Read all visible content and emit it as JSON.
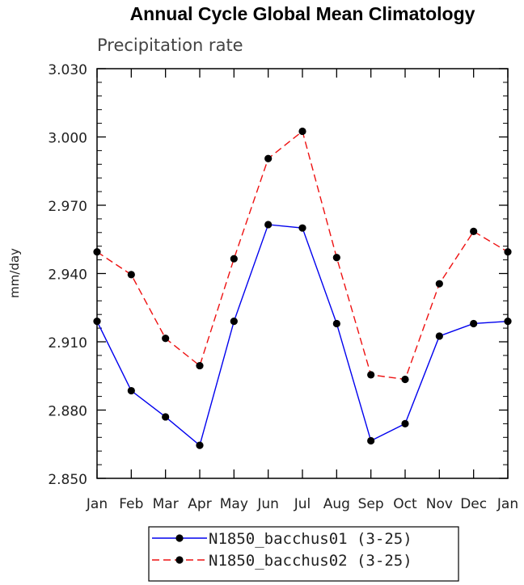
{
  "chart_data": {
    "type": "line",
    "title": "Annual Cycle Global Mean Climatology",
    "subtitle": "Precipitation rate",
    "ylabel": "mm/day",
    "xlabel": "",
    "categories": [
      "Jan",
      "Feb",
      "Mar",
      "Apr",
      "May",
      "Jun",
      "Jul",
      "Aug",
      "Sep",
      "Oct",
      "Nov",
      "Dec",
      "Jan"
    ],
    "ylim": [
      2.85,
      3.03
    ],
    "yticks": [
      "2.850",
      "2.880",
      "2.910",
      "2.940",
      "2.970",
      "3.000",
      "3.030"
    ],
    "grid": false,
    "legend_position": "bottom",
    "series": [
      {
        "name": "N1850_bacchus01 (3-25)",
        "color": "#0000ee",
        "line_style": "solid",
        "marker": "filled-circle",
        "values": [
          2.919,
          2.8885,
          2.877,
          2.8645,
          2.919,
          2.9615,
          2.96,
          2.918,
          2.8665,
          2.874,
          2.9125,
          2.918,
          2.919
        ]
      },
      {
        "name": "N1850_bacchus02 (3-25)",
        "color": "#ee1111",
        "line_style": "dashed",
        "marker": "filled-circle",
        "values": [
          2.9495,
          2.9395,
          2.9115,
          2.8995,
          2.9465,
          2.9905,
          3.0025,
          2.947,
          2.8955,
          2.8935,
          2.9355,
          2.9585,
          2.9495
        ]
      }
    ]
  }
}
